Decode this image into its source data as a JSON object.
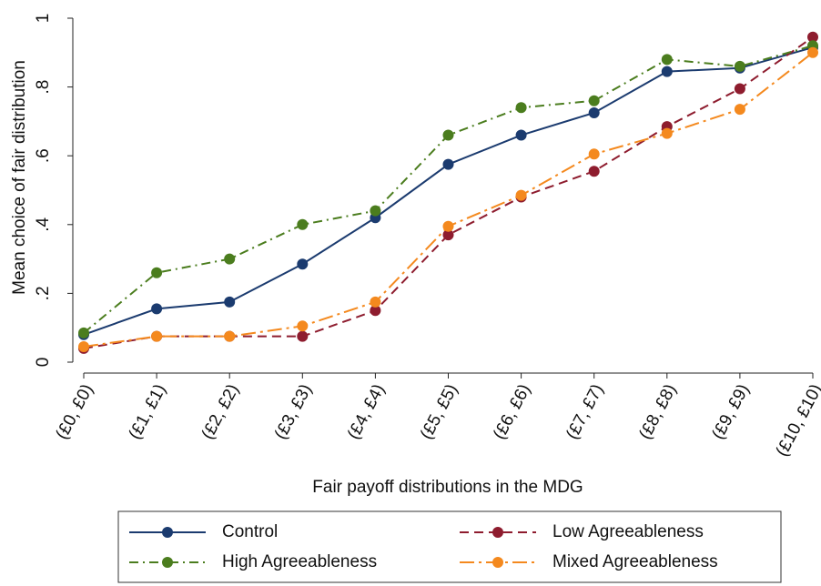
{
  "chart_data": {
    "type": "line",
    "xlabel": "Fair payoff distributions in the MDG",
    "ylabel": "Mean choice of fair distribution",
    "categories": [
      "(£0, £0)",
      "(£1, £1)",
      "(£2, £2)",
      "(£3, £3)",
      "(£4, £4)",
      "(£5, £5)",
      "(£6, £6)",
      "(£7, £7)",
      "(£8, £8)",
      "(£9, £9)",
      "(£10, £10)"
    ],
    "series": [
      {
        "name": "Control",
        "color": "#1b3b6f",
        "dash": "solid",
        "values": [
          0.08,
          0.155,
          0.175,
          0.285,
          0.42,
          0.575,
          0.66,
          0.725,
          0.845,
          0.855,
          0.915
        ]
      },
      {
        "name": "Low Agreeableness",
        "color": "#8e1c2e",
        "dash": "dashed",
        "values": [
          0.04,
          0.075,
          0.075,
          0.075,
          0.15,
          0.37,
          0.48,
          0.555,
          0.685,
          0.795,
          0.945
        ]
      },
      {
        "name": "High Agreeableness",
        "color": "#4b7d1e",
        "dash": "dashdot",
        "values": [
          0.085,
          0.26,
          0.3,
          0.4,
          0.44,
          0.66,
          0.74,
          0.76,
          0.88,
          0.86,
          0.92
        ]
      },
      {
        "name": "Mixed Agreeableness",
        "color": "#f4891e",
        "dash": "longdashdot",
        "values": [
          0.045,
          0.075,
          0.075,
          0.105,
          0.175,
          0.395,
          0.485,
          0.605,
          0.665,
          0.735,
          0.9
        ]
      }
    ],
    "ylim": [
      0,
      1
    ],
    "yticks": [
      0,
      {
        "value": 0.2,
        "label": ".2"
      },
      {
        "value": 0.4,
        "label": ".4"
      },
      {
        "value": 0.6,
        "label": ".6"
      },
      {
        "value": 0.8,
        "label": ".8"
      },
      1
    ],
    "grid": false,
    "legend": "bottom"
  }
}
